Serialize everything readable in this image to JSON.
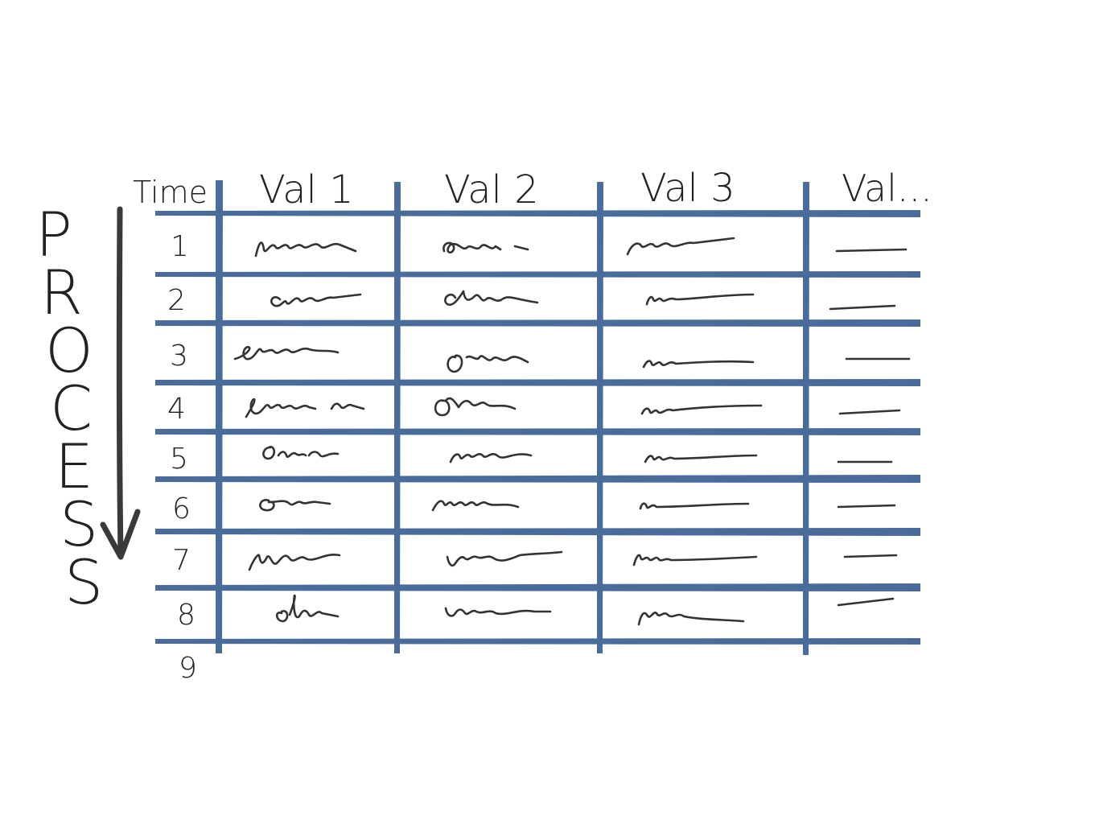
{
  "diagram": {
    "process_label": "PROCESS",
    "time_header": "Time",
    "column_headers": [
      "Val 1",
      "Val 2",
      "Val 3",
      "Val..."
    ],
    "row_labels": [
      "1",
      "2",
      "3",
      "4",
      "5",
      "6",
      "7",
      "8",
      "9"
    ],
    "colors": {
      "grid": "#4a6c9b",
      "ink": "#333333",
      "background": "#ffffff"
    },
    "icons": [
      "down-arrow-icon"
    ]
  }
}
